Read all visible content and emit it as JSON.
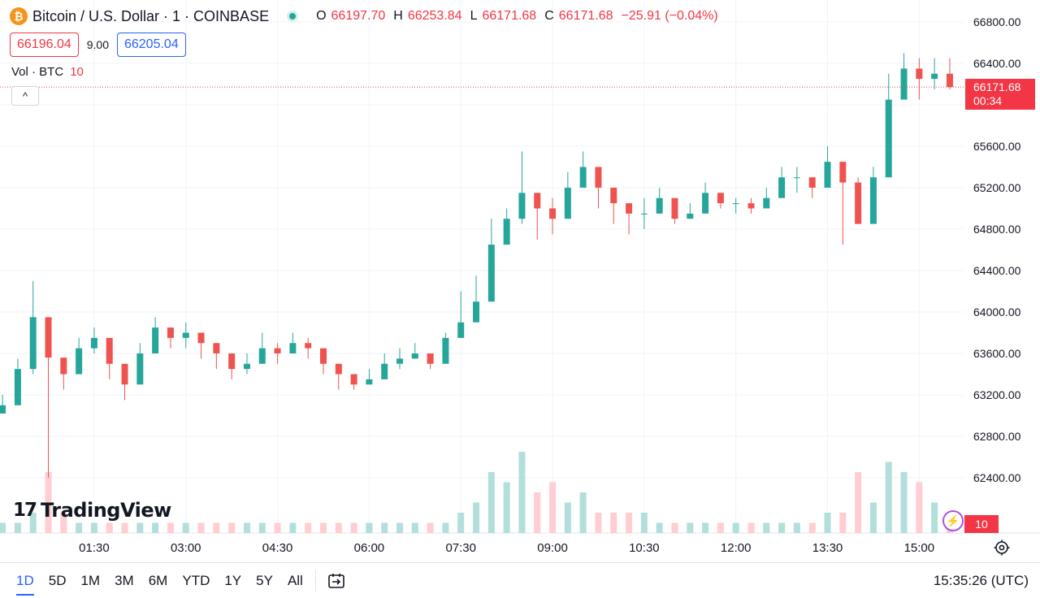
{
  "legend": {
    "coin_glyph": "₿",
    "symbol": "Bitcoin / U.S. Dollar · 1 · COINBASE",
    "ohlc": [
      {
        "k": "O",
        "v": "66197.70"
      },
      {
        "k": "H",
        "v": "66253.84"
      },
      {
        "k": "L",
        "v": "66171.68"
      },
      {
        "k": "C",
        "v": "66171.68"
      }
    ],
    "change": "−25.91 (−0.04%)"
  },
  "bid": "66196.04",
  "spread": "9.00",
  "ask": "66205.04",
  "volume": {
    "label": "Vol · BTC",
    "value": "10",
    "collapse_glyph": "^"
  },
  "current_price": {
    "price": "66171.68",
    "countdown": "00:34"
  },
  "volume_badge": "10",
  "watermark": {
    "logo": "17",
    "text": "TradingView"
  },
  "bolt_glyph": "⚡",
  "ranges": [
    "1D",
    "5D",
    "1M",
    "3M",
    "6M",
    "YTD",
    "1Y",
    "5Y",
    "All"
  ],
  "active_range": "1D",
  "clock": "15:35:26 (UTC)",
  "colors": {
    "up": "#26a69a",
    "down": "#ef5350",
    "up_vol": "#b2dfdb",
    "down_vol": "#ffcdd2",
    "last_line": "#f23645",
    "accent": "#2962ff"
  },
  "chart_data": {
    "type": "candlestick",
    "title": "Bitcoin / U.S. Dollar · 1 · COINBASE",
    "xlabel": "",
    "ylabel": "",
    "y_ticks": [
      62400,
      62800,
      63200,
      63600,
      64000,
      64400,
      64800,
      65200,
      65600,
      66000,
      66400,
      66800
    ],
    "y_tick_labels": [
      "62400.00",
      "62800.00",
      "63200.00",
      "63600.00",
      "64000.00",
      "64400.00",
      "64800.00",
      "65200.00",
      "65600.00",
      "66000.00",
      "66400.00",
      "66800.00"
    ],
    "x_ticks": [
      "01:30",
      "03:00",
      "04:30",
      "06:00",
      "07:30",
      "09:00",
      "10:30",
      "12:00",
      "13:30",
      "15:00"
    ],
    "grid": true,
    "last_price": 66171.68,
    "series": [
      {
        "name": "BTCUSD",
        "x": [
          "00:00",
          "00:15",
          "00:30",
          "00:45",
          "01:00",
          "01:15",
          "01:30",
          "01:45",
          "02:00",
          "02:15",
          "02:30",
          "02:45",
          "03:00",
          "03:15",
          "03:30",
          "03:45",
          "04:00",
          "04:15",
          "04:30",
          "04:45",
          "05:00",
          "05:15",
          "05:30",
          "05:45",
          "06:00",
          "06:15",
          "06:30",
          "06:45",
          "07:00",
          "07:15",
          "07:30",
          "07:45",
          "08:00",
          "08:15",
          "08:30",
          "08:45",
          "09:00",
          "09:15",
          "09:30",
          "09:45",
          "10:00",
          "10:15",
          "10:30",
          "10:45",
          "11:00",
          "11:15",
          "11:30",
          "11:45",
          "12:00",
          "12:15",
          "12:30",
          "12:45",
          "13:00",
          "13:15",
          "13:30",
          "13:45",
          "14:00",
          "14:15",
          "14:30",
          "14:45",
          "15:00",
          "15:15",
          "15:30"
        ],
        "close": [
          63100,
          63450,
          63950,
          63560,
          63400,
          63650,
          63750,
          63500,
          63300,
          63600,
          63850,
          63750,
          63800,
          63700,
          63600,
          63450,
          63500,
          63650,
          63600,
          63700,
          63650,
          63500,
          63400,
          63300,
          63350,
          63500,
          63550,
          63600,
          63500,
          63750,
          63900,
          64100,
          64650,
          64900,
          65150,
          65000,
          64900,
          65200,
          65400,
          65200,
          65050,
          64950,
          64950,
          65100,
          64900,
          64950,
          65150,
          65050,
          65050,
          65000,
          65100,
          65300,
          65300,
          65200,
          65450,
          65250,
          64850,
          65300,
          66050,
          66350,
          66250,
          66300,
          66171.68
        ],
        "high": [
          63200,
          63550,
          64300,
          63700,
          63550,
          63750,
          63850,
          63600,
          63450,
          63700,
          63950,
          63850,
          63900,
          63800,
          63700,
          63550,
          63600,
          63800,
          63700,
          63800,
          63750,
          63600,
          63500,
          63400,
          63450,
          63600,
          63650,
          63700,
          63600,
          63800,
          64200,
          64350,
          64900,
          65000,
          65550,
          65150,
          65100,
          65350,
          65550,
          65300,
          65200,
          65050,
          65100,
          65200,
          65000,
          65050,
          65250,
          65100,
          65100,
          65100,
          65200,
          65400,
          65400,
          65300,
          65600,
          65400,
          65300,
          65400,
          66300,
          66500,
          66450,
          66450,
          66450
        ],
        "low": [
          63050,
          63100,
          63400,
          62400,
          63250,
          63400,
          63600,
          63350,
          63150,
          63400,
          63650,
          63650,
          63650,
          63550,
          63450,
          63350,
          63400,
          63500,
          63500,
          63600,
          63550,
          63400,
          63250,
          63250,
          63300,
          63400,
          63450,
          63550,
          63450,
          63650,
          63750,
          64000,
          64500,
          64750,
          64850,
          64700,
          64750,
          64950,
          65200,
          65000,
          64850,
          64750,
          64800,
          64950,
          64850,
          64900,
          65000,
          65000,
          64950,
          64950,
          65000,
          65150,
          65150,
          65100,
          65200,
          64650,
          64850,
          65100,
          65800,
          66100,
          66050,
          66150,
          66150
        ],
        "volume": [
          1,
          1,
          2,
          6,
          2,
          1,
          1,
          1,
          1,
          1,
          1,
          1,
          1,
          1,
          1,
          1,
          1,
          1,
          1,
          1,
          1,
          1,
          1,
          1,
          1,
          1,
          1,
          1,
          1,
          1,
          2,
          3,
          6,
          5,
          8,
          4,
          5,
          3,
          4,
          2,
          2,
          2,
          2,
          1,
          1,
          1,
          1,
          1,
          1,
          1,
          1,
          1,
          1,
          1,
          2,
          2,
          6,
          3,
          7,
          6,
          5,
          3,
          2
        ]
      }
    ]
  }
}
